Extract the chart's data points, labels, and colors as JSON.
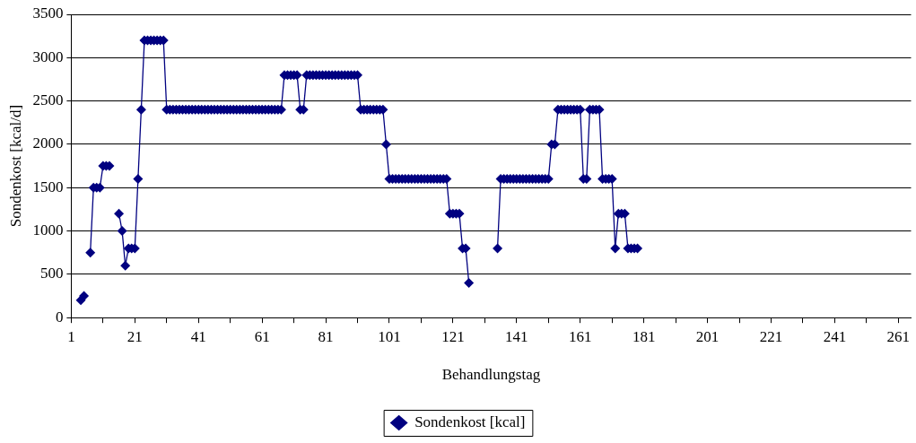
{
  "chart_data": {
    "type": "line",
    "xlabel": "Behandlungstag",
    "ylabel": "Sondenkost [kcal/d]",
    "xlim": [
      1,
      265
    ],
    "xticks": [
      1,
      {
        "value": 11,
        "label": null
      },
      21,
      {
        "value": 31,
        "label": null
      },
      41,
      {
        "value": 51,
        "label": null
      },
      61,
      {
        "value": 71,
        "label": null
      },
      81,
      {
        "value": 91,
        "label": null
      },
      101,
      {
        "value": 111,
        "label": null
      },
      121,
      {
        "value": 131,
        "label": null
      },
      141,
      {
        "value": 151,
        "label": null
      },
      161,
      {
        "value": 171,
        "label": null
      },
      181,
      {
        "value": 191,
        "label": null
      },
      201,
      {
        "value": 211,
        "label": null
      },
      221,
      {
        "value": 231,
        "label": null
      },
      241,
      {
        "value": 251,
        "label": null
      },
      261
    ],
    "ylim": [
      0,
      3500
    ],
    "yticks": [
      0,
      500,
      1000,
      1500,
      2000,
      2500,
      3000,
      3500
    ],
    "grid": "y",
    "legend": "bottom",
    "marker": "diamond",
    "line_style": "solid",
    "series": [
      {
        "name": "Sondenkost [kcal]",
        "color": "#000080",
        "x": [
          4,
          5,
          6,
          7,
          8,
          9,
          10,
          11,
          12,
          13,
          14,
          16,
          17,
          18,
          19,
          20,
          21,
          22,
          23,
          24,
          25,
          26,
          27,
          28,
          29,
          30,
          31,
          32,
          33,
          34,
          35,
          36,
          37,
          38,
          39,
          40,
          41,
          42,
          43,
          44,
          45,
          46,
          47,
          48,
          49,
          50,
          51,
          52,
          53,
          54,
          55,
          56,
          57,
          58,
          59,
          60,
          61,
          62,
          63,
          64,
          65,
          66,
          67,
          68,
          69,
          70,
          71,
          72,
          73,
          74,
          75,
          76,
          77,
          78,
          79,
          80,
          81,
          82,
          83,
          84,
          85,
          86,
          87,
          88,
          89,
          90,
          91,
          92,
          93,
          94,
          95,
          96,
          97,
          98,
          99,
          100,
          101,
          102,
          103,
          104,
          105,
          106,
          107,
          108,
          109,
          110,
          111,
          112,
          113,
          114,
          115,
          116,
          117,
          118,
          119,
          120,
          121,
          122,
          123,
          124,
          125,
          126,
          127,
          135,
          136,
          137,
          138,
          139,
          140,
          141,
          142,
          143,
          144,
          145,
          146,
          147,
          148,
          149,
          150,
          151,
          152,
          153,
          154,
          155,
          156,
          157,
          158,
          159,
          160,
          161,
          162,
          163,
          164,
          165,
          166,
          167,
          168,
          169,
          170,
          171,
          172,
          173,
          174,
          175,
          176,
          177,
          178,
          179
        ],
        "values": [
          200,
          250,
          null,
          750,
          1500,
          1500,
          1500,
          1750,
          1750,
          1750,
          null,
          1200,
          1000,
          600,
          800,
          800,
          800,
          1600,
          2400,
          3200,
          3200,
          3200,
          3200,
          3200,
          3200,
          3200,
          2400,
          2400,
          2400,
          2400,
          2400,
          2400,
          2400,
          2400,
          2400,
          2400,
          2400,
          2400,
          2400,
          2400,
          2400,
          2400,
          2400,
          2400,
          2400,
          2400,
          2400,
          2400,
          2400,
          2400,
          2400,
          2400,
          2400,
          2400,
          2400,
          2400,
          2400,
          2400,
          2400,
          2400,
          2400,
          2400,
          2400,
          2800,
          2800,
          2800,
          2800,
          2800,
          2400,
          2400,
          2800,
          2800,
          2800,
          2800,
          2800,
          2800,
          2800,
          2800,
          2800,
          2800,
          2800,
          2800,
          2800,
          2800,
          2800,
          2800,
          2800,
          2400,
          2400,
          2400,
          2400,
          2400,
          2400,
          2400,
          2400,
          2000,
          1600,
          1600,
          1600,
          1600,
          1600,
          1600,
          1600,
          1600,
          1600,
          1600,
          1600,
          1600,
          1600,
          1600,
          1600,
          1600,
          1600,
          1600,
          1600,
          1200,
          1200,
          1200,
          1200,
          800,
          800,
          400,
          null,
          800,
          1600,
          1600,
          1600,
          1600,
          1600,
          1600,
          1600,
          1600,
          1600,
          1600,
          1600,
          1600,
          1600,
          1600,
          1600,
          1600,
          2000,
          2000,
          2400,
          2400,
          2400,
          2400,
          2400,
          2400,
          2400,
          2400,
          1600,
          1600,
          2400,
          2400,
          2400,
          2400,
          1600,
          1600,
          1600,
          1600,
          800,
          1200,
          1200,
          1200,
          800,
          800,
          800,
          800
        ]
      }
    ]
  }
}
